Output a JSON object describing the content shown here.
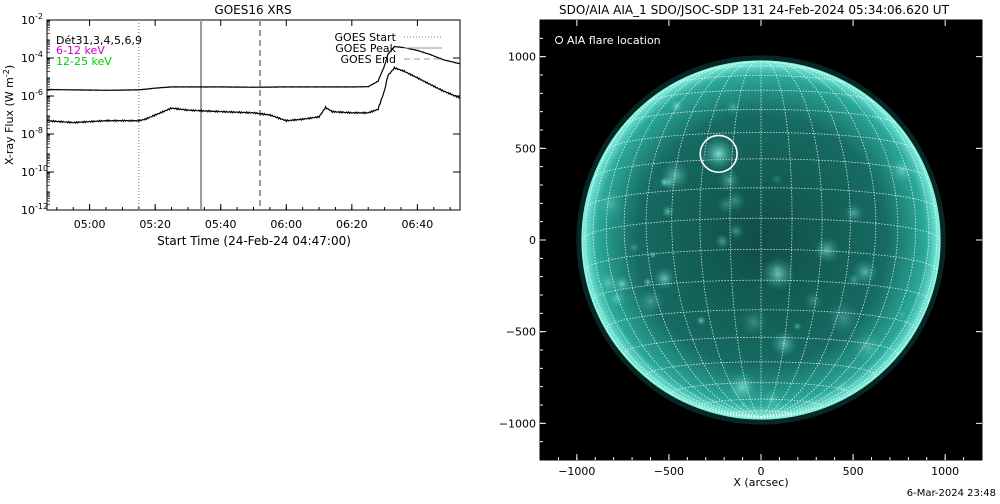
{
  "chart_data": [
    {
      "type": "line",
      "title": "GOES16 XRS",
      "xlabel": "Start Time (24-Feb-24 04:47:00)",
      "ylabel": "X-ray Flux (W m",
      "ylabel_sup": "-2",
      "ylabel_close": ")",
      "y_scale": "log",
      "ylim": [
        1e-12,
        0.01
      ],
      "xlim": [
        "04:47",
        "06:53"
      ],
      "x_ticks": [
        "05:00",
        "05:20",
        "05:40",
        "06:00",
        "06:20",
        "06:40"
      ],
      "y_ticks": [
        {
          "value": 0.01,
          "base": "10",
          "exp": "-2"
        },
        {
          "value": 0.0001,
          "base": "10",
          "exp": "-4"
        },
        {
          "value": 1e-06,
          "base": "10",
          "exp": "-6"
        },
        {
          "value": 1e-08,
          "base": "10",
          "exp": "-8"
        },
        {
          "value": 1e-10,
          "base": "10",
          "exp": "-10"
        },
        {
          "value": 1e-12,
          "base": "10",
          "exp": "-12"
        }
      ],
      "detectors_label": "Dét31,3,4,5,6,9",
      "series": [
        {
          "name": "6-12 keV",
          "color": "#cc00cc",
          "x": [
            "04:47",
            "04:55",
            "05:05",
            "05:15",
            "05:20",
            "05:25",
            "05:30",
            "05:40",
            "05:50",
            "06:00",
            "06:10",
            "06:20",
            "06:25",
            "06:28",
            "06:30",
            "06:31",
            "06:33",
            "06:36",
            "06:40",
            "06:44",
            "06:48",
            "06:53"
          ],
          "y": [
            2.2e-06,
            2.1e-06,
            2e-06,
            2.1e-06,
            2.6e-06,
            3e-06,
            3e-06,
            3e-06,
            2.9e-06,
            3e-06,
            3e-06,
            3e-06,
            3.1e-06,
            6e-06,
            4e-05,
            0.00016,
            0.0004,
            0.00035,
            0.00025,
            0.00015,
            8e-05,
            5e-05
          ]
        },
        {
          "name": "12-25 keV",
          "color": "#00cc00",
          "x": [
            "04:47",
            "04:55",
            "05:05",
            "05:15",
            "05:17",
            "05:20",
            "05:25",
            "05:30",
            "05:40",
            "05:50",
            "05:55",
            "06:00",
            "06:05",
            "06:10",
            "06:12",
            "06:14",
            "06:20",
            "06:25",
            "06:28",
            "06:30",
            "06:31",
            "06:33",
            "06:36",
            "06:40",
            "06:44",
            "06:48",
            "06:53"
          ],
          "y": [
            5e-08,
            4e-08,
            5e-08,
            5e-08,
            6e-08,
            1e-07,
            2.3e-07,
            1.8e-07,
            1.5e-07,
            1.3e-07,
            1e-07,
            5e-08,
            6e-08,
            8e-08,
            2.5e-07,
            1.5e-07,
            1.3e-07,
            1.3e-07,
            2e-07,
            2e-06,
            1.2e-05,
            3e-05,
            2e-05,
            9e-06,
            4e-06,
            1.8e-06,
            8e-07
          ]
        }
      ],
      "markers": [
        {
          "name": "GOES Start",
          "x": "05:15",
          "style": "dotted"
        },
        {
          "name": "GOES Peak",
          "x": "05:34",
          "style": "solid"
        },
        {
          "name": "GOES End",
          "x": "05:52",
          "style": "dashed"
        }
      ],
      "legend_placement": "top-right",
      "grid": false
    },
    {
      "type": "image",
      "title": "SDO/AIA AIA_1 SDO/JSOC-SDP 131 24-Feb-2024 05:34:06.620 UT",
      "xlabel": "X (arcsec)",
      "xlim": [
        -1200,
        1200
      ],
      "ylim": [
        -1200,
        1200
      ],
      "x_ticks": [
        -1000,
        -500,
        0,
        500,
        1000
      ],
      "y_ticks": [
        -1000,
        -500,
        0,
        500,
        1000
      ],
      "x_tick_labels": [
        "−1000",
        "−500",
        "0",
        "500",
        "1000"
      ],
      "y_tick_labels": [
        "−1000",
        "−500",
        "0",
        "500",
        "1000"
      ],
      "solar_radius_arcsec": 970,
      "disk_color": "#1e9a8c",
      "limb_color": "#7ff0e0",
      "flare_location": {
        "x": -230,
        "y": 470,
        "radius_arcsec": 100
      },
      "legend_label": "AIA flare location"
    }
  ],
  "footer": {
    "timestamp": "6-Mar-2024 23:48"
  }
}
